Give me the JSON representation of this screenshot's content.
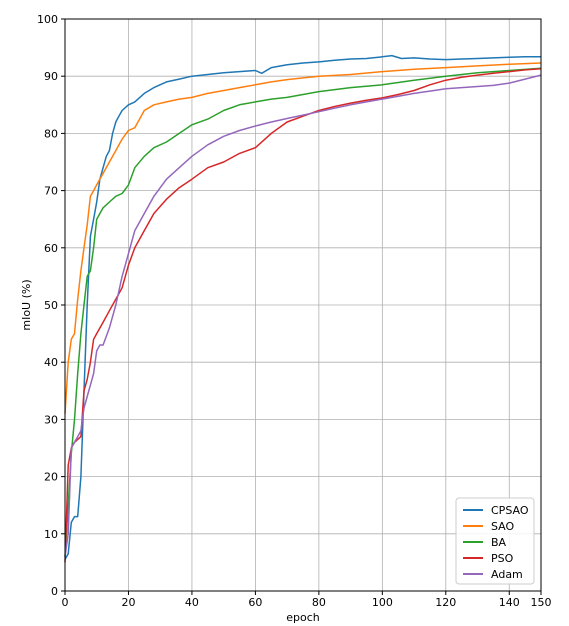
{
  "chart_data": {
    "type": "line",
    "xlabel": "epoch",
    "ylabel": "mIoU (%)",
    "xlim": [
      0,
      150
    ],
    "ylim": [
      0,
      100
    ],
    "xticks": [
      0,
      20,
      40,
      60,
      80,
      100,
      120,
      140,
      150
    ],
    "yticks": [
      0,
      10,
      20,
      30,
      40,
      50,
      60,
      70,
      80,
      90,
      100
    ],
    "grid": true,
    "legend_position": "bottom-right",
    "series": [
      {
        "name": "CPSAO",
        "color": "#1f77b4",
        "x": [
          0,
          1,
          2,
          3,
          4,
          5,
          6,
          7,
          8,
          9,
          10,
          11,
          12,
          13,
          14,
          15,
          16,
          17,
          18,
          20,
          22,
          25,
          28,
          32,
          36,
          40,
          45,
          50,
          55,
          60,
          62,
          65,
          70,
          75,
          80,
          85,
          90,
          95,
          100,
          103,
          106,
          110,
          115,
          120,
          125,
          130,
          135,
          140,
          145,
          150
        ],
        "y": [
          5.5,
          6.5,
          12,
          13,
          13,
          20,
          35,
          50,
          62,
          65,
          68,
          72,
          74,
          76,
          77,
          80,
          82,
          83,
          84,
          85,
          85.5,
          87,
          88,
          89,
          89.5,
          90,
          90.3,
          90.6,
          90.8,
          91,
          90.5,
          91.5,
          92,
          92.3,
          92.5,
          92.8,
          93,
          93.1,
          93.4,
          93.6,
          93.1,
          93.2,
          93,
          92.9,
          93,
          93.1,
          93.2,
          93.3,
          93.4,
          93.4
        ]
      },
      {
        "name": "SAO",
        "color": "#ff7f0e",
        "x": [
          0,
          1,
          2,
          3,
          4,
          5,
          6,
          7,
          8,
          9,
          10,
          12,
          14,
          16,
          18,
          20,
          22,
          25,
          28,
          32,
          36,
          40,
          45,
          50,
          55,
          60,
          65,
          70,
          75,
          80,
          90,
          100,
          110,
          120,
          130,
          140,
          150
        ],
        "y": [
          31,
          40,
          44,
          45,
          51,
          56,
          60,
          64,
          69,
          70,
          71,
          73,
          75,
          77,
          79,
          80.5,
          81,
          84,
          85,
          85.5,
          86,
          86.3,
          87,
          87.5,
          88,
          88.5,
          89,
          89.4,
          89.7,
          90,
          90.3,
          90.8,
          91.2,
          91.5,
          91.8,
          92.1,
          92.3
        ]
      },
      {
        "name": "BA",
        "color": "#2ca02c",
        "x": [
          0,
          1,
          2,
          3,
          4,
          5,
          6,
          7,
          8,
          9,
          10,
          11,
          12,
          14,
          16,
          18,
          20,
          22,
          25,
          28,
          32,
          36,
          40,
          45,
          50,
          55,
          60,
          65,
          70,
          75,
          80,
          90,
          100,
          110,
          120,
          130,
          140,
          150
        ],
        "y": [
          6,
          15,
          24,
          30,
          38,
          45,
          50,
          55,
          56,
          60,
          65,
          66,
          67,
          68,
          69,
          69.5,
          71,
          74,
          76,
          77.5,
          78.5,
          80,
          81.5,
          82.5,
          84,
          85,
          85.5,
          86,
          86.3,
          86.8,
          87.3,
          88,
          88.5,
          89.3,
          90,
          90.6,
          91,
          91.4
        ]
      },
      {
        "name": "PSO",
        "color": "#d62728",
        "x": [
          0,
          1,
          2,
          3,
          4,
          5,
          6,
          7,
          8,
          9,
          10,
          12,
          14,
          16,
          18,
          20,
          22,
          25,
          28,
          32,
          36,
          40,
          45,
          50,
          55,
          60,
          65,
          70,
          75,
          80,
          85,
          90,
          95,
          100,
          105,
          110,
          115,
          120,
          125,
          130,
          135,
          140,
          145,
          150
        ],
        "y": [
          5,
          22,
          25,
          26,
          26.5,
          27,
          35,
          37,
          40,
          44,
          45,
          47,
          49,
          51,
          53,
          57,
          60,
          63,
          66,
          68.5,
          70.5,
          72,
          74,
          75,
          76.5,
          77.5,
          80,
          82,
          83,
          84,
          84.7,
          85.3,
          85.8,
          86.2,
          86.8,
          87.5,
          88.5,
          89.3,
          89.8,
          90.2,
          90.5,
          90.8,
          91.1,
          91.3
        ]
      },
      {
        "name": "Adam",
        "color": "#9467bd",
        "x": [
          0,
          1,
          2,
          3,
          4,
          5,
          6,
          7,
          8,
          9,
          10,
          11,
          12,
          14,
          16,
          18,
          20,
          22,
          25,
          28,
          32,
          36,
          40,
          45,
          50,
          55,
          60,
          65,
          70,
          75,
          80,
          85,
          90,
          95,
          100,
          105,
          110,
          115,
          120,
          125,
          130,
          135,
          140,
          145,
          150
        ],
        "y": [
          6,
          10,
          25,
          26,
          27,
          28,
          32,
          34,
          36,
          38,
          42,
          43,
          43,
          46,
          50,
          55,
          59,
          63,
          66,
          69,
          72,
          74,
          76,
          78,
          79.5,
          80.5,
          81.3,
          82,
          82.6,
          83.2,
          83.8,
          84.4,
          85,
          85.5,
          86,
          86.5,
          87,
          87.4,
          87.8,
          88,
          88.2,
          88.4,
          88.8,
          89.5,
          90.2
        ]
      }
    ]
  }
}
